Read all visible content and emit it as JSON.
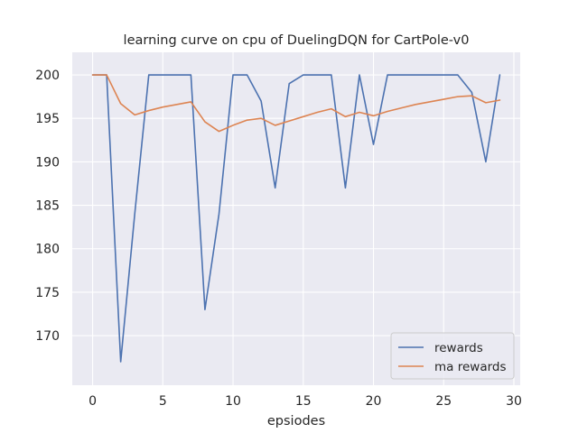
{
  "chart_data": {
    "type": "line",
    "title": "learning curve on cpu of DuelingDQN for CartPole-v0",
    "xlabel": "epsiodes",
    "ylabel": "",
    "xlim": [
      -1.45,
      30.45
    ],
    "ylim": [
      164.3,
      202.6
    ],
    "xticks": [
      0,
      5,
      10,
      15,
      20,
      25,
      30
    ],
    "yticks": [
      170,
      175,
      180,
      185,
      190,
      195,
      200
    ],
    "grid": true,
    "background": "#eaeaf2",
    "legend_position": "lower-right",
    "x": [
      0,
      1,
      2,
      3,
      4,
      5,
      6,
      7,
      8,
      9,
      10,
      11,
      12,
      13,
      14,
      15,
      16,
      17,
      18,
      19,
      20,
      21,
      22,
      23,
      24,
      25,
      26,
      27,
      28,
      29
    ],
    "series": [
      {
        "name": "rewards",
        "color": "#4c72b0",
        "values": [
          200,
          200,
          167,
          184,
          200,
          200,
          200,
          200,
          173,
          184,
          200,
          200,
          197,
          187,
          199,
          200,
          200,
          200,
          187,
          200,
          192,
          200,
          200,
          200,
          200,
          200,
          200,
          198,
          190,
          200
        ]
      },
      {
        "name": "ma rewards",
        "color": "#dd8452",
        "values": [
          200,
          200,
          196.7,
          195.4,
          195.9,
          196.3,
          196.6,
          196.9,
          194.6,
          193.5,
          194.2,
          194.8,
          195.0,
          194.2,
          194.7,
          195.2,
          195.7,
          196.1,
          195.2,
          195.7,
          195.3,
          195.8,
          196.2,
          196.6,
          196.9,
          197.2,
          197.5,
          197.6,
          196.8,
          197.1
        ]
      }
    ]
  }
}
